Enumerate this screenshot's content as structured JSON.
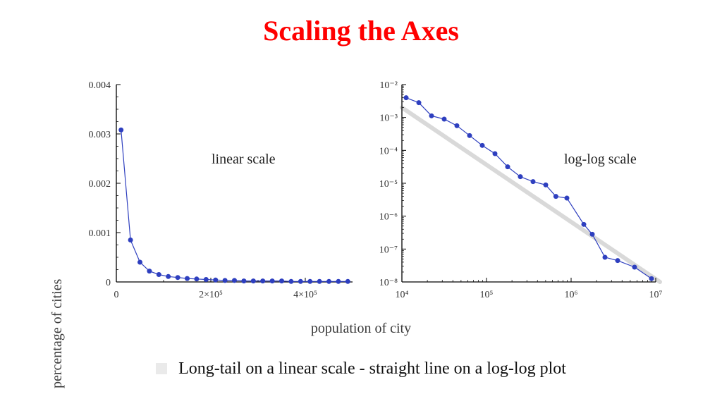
{
  "title": {
    "text": "Scaling the Axes",
    "color": "#ff0000",
    "fontsize": 40,
    "font_weight": "bold"
  },
  "caption": {
    "text": "Long-tail on a linear scale - straight line on a log-log plot",
    "fontsize": 24
  },
  "y_axis_label": "percentage of cities",
  "x_axis_label": "population of city",
  "left_chart": {
    "type": "line-scatter",
    "label": "linear scale",
    "background_color": "#ffffff",
    "axis_color": "#000000",
    "line_color": "#2e3fbf",
    "marker_color": "#2e3fbf",
    "marker_radius": 3.5,
    "line_width": 1.2,
    "xlim": [
      0,
      500000
    ],
    "ylim": [
      0,
      0.004
    ],
    "x_ticks": [
      {
        "v": 0,
        "label": "0"
      },
      {
        "v": 200000,
        "label": "2×10⁵"
      },
      {
        "v": 400000,
        "label": "4×10⁵"
      }
    ],
    "y_ticks": [
      {
        "v": 0,
        "label": "0"
      },
      {
        "v": 0.001,
        "label": "0.001"
      },
      {
        "v": 0.002,
        "label": "0.002"
      },
      {
        "v": 0.003,
        "label": "0.003"
      },
      {
        "v": 0.004,
        "label": "0.004"
      }
    ],
    "data": [
      {
        "x": 10000,
        "y": 0.00308
      },
      {
        "x": 30000,
        "y": 0.00085
      },
      {
        "x": 50000,
        "y": 0.0004
      },
      {
        "x": 70000,
        "y": 0.00022
      },
      {
        "x": 90000,
        "y": 0.00015
      },
      {
        "x": 110000,
        "y": 0.00011
      },
      {
        "x": 130000,
        "y": 9e-05
      },
      {
        "x": 150000,
        "y": 7e-05
      },
      {
        "x": 170000,
        "y": 6e-05
      },
      {
        "x": 190000,
        "y": 5e-05
      },
      {
        "x": 210000,
        "y": 4e-05
      },
      {
        "x": 230000,
        "y": 3e-05
      },
      {
        "x": 250000,
        "y": 3e-05
      },
      {
        "x": 270000,
        "y": 2e-05
      },
      {
        "x": 290000,
        "y": 2e-05
      },
      {
        "x": 310000,
        "y": 2e-05
      },
      {
        "x": 330000,
        "y": 2e-05
      },
      {
        "x": 350000,
        "y": 2e-05
      },
      {
        "x": 370000,
        "y": 1e-05
      },
      {
        "x": 390000,
        "y": 1e-05
      },
      {
        "x": 410000,
        "y": 1e-05
      },
      {
        "x": 430000,
        "y": 1e-05
      },
      {
        "x": 450000,
        "y": 1e-05
      },
      {
        "x": 470000,
        "y": 1e-05
      },
      {
        "x": 490000,
        "y": 1e-05
      }
    ]
  },
  "right_chart": {
    "type": "line-scatter-loglog",
    "label": "log-log scale",
    "background_color": "#ffffff",
    "axis_color": "#000000",
    "line_color": "#2e3fbf",
    "marker_color": "#2e3fbf",
    "marker_radius": 3.5,
    "line_width": 1.2,
    "guide_line_color": "#d9d9d9",
    "guide_line_width": 6,
    "x_log_range": [
      4,
      7
    ],
    "y_log_range": [
      -8,
      -2
    ],
    "x_ticks": [
      {
        "exp": 4,
        "label": "10⁴"
      },
      {
        "exp": 5,
        "label": "10⁵"
      },
      {
        "exp": 6,
        "label": "10⁶"
      },
      {
        "exp": 7,
        "label": "10⁷"
      }
    ],
    "y_ticks": [
      {
        "exp": -8,
        "label": "10⁻⁸"
      },
      {
        "exp": -7,
        "label": "10⁻⁷"
      },
      {
        "exp": -6,
        "label": "10⁻⁶"
      },
      {
        "exp": -5,
        "label": "10⁻⁵"
      },
      {
        "exp": -4,
        "label": "10⁻⁴"
      },
      {
        "exp": -3,
        "label": "10⁻³"
      },
      {
        "exp": -2,
        "label": "10⁻²"
      }
    ],
    "guide_line": {
      "x1_exp": 4,
      "y1_exp": -2.7,
      "x2_exp": 7.05,
      "y2_exp": -8.0
    },
    "data": [
      {
        "lx": 4.05,
        "ly": -2.4
      },
      {
        "lx": 4.2,
        "ly": -2.55
      },
      {
        "lx": 4.35,
        "ly": -2.95
      },
      {
        "lx": 4.5,
        "ly": -3.05
      },
      {
        "lx": 4.65,
        "ly": -3.25
      },
      {
        "lx": 4.8,
        "ly": -3.55
      },
      {
        "lx": 4.95,
        "ly": -3.85
      },
      {
        "lx": 5.1,
        "ly": -4.1
      },
      {
        "lx": 5.25,
        "ly": -4.5
      },
      {
        "lx": 5.4,
        "ly": -4.8
      },
      {
        "lx": 5.55,
        "ly": -4.95
      },
      {
        "lx": 5.7,
        "ly": -5.05
      },
      {
        "lx": 5.82,
        "ly": -5.4
      },
      {
        "lx": 5.95,
        "ly": -5.45
      },
      {
        "lx": 6.15,
        "ly": -6.25
      },
      {
        "lx": 6.25,
        "ly": -6.55
      },
      {
        "lx": 6.4,
        "ly": -7.25
      },
      {
        "lx": 6.55,
        "ly": -7.35
      },
      {
        "lx": 6.75,
        "ly": -7.55
      },
      {
        "lx": 6.95,
        "ly": -7.9
      }
    ]
  }
}
